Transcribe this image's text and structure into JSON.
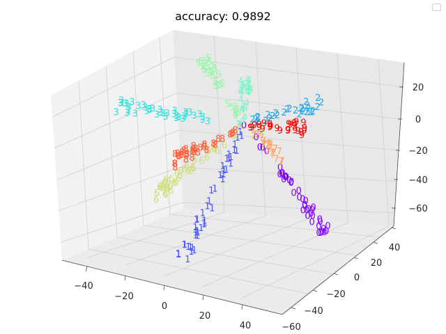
{
  "chart_data": {
    "type": "scatter",
    "projection": "3d",
    "title": "accuracy: 0.9892",
    "x_axis": {
      "ticks": [
        "−40",
        "−20",
        "0",
        "20",
        "40"
      ]
    },
    "y_axis": {
      "ticks": [
        "−60",
        "−40",
        "−20",
        "0",
        "20",
        "40"
      ]
    },
    "z_axis": {
      "ticks": [
        "20",
        "0",
        "−20",
        "−40",
        "−60"
      ]
    },
    "grid": true,
    "legend": {
      "placement": "upper-right",
      "entries": []
    },
    "series": [
      {
        "name": "0",
        "label": "0",
        "color": "#8000ff",
        "start": [
          0,
          -2
        ],
        "end": [
          120,
          160
        ],
        "count": 42
      },
      {
        "name": "1",
        "label": "1",
        "color": "#4a56ff",
        "start": [
          -4,
          8
        ],
        "end": [
          -88,
          190
        ],
        "count": 46
      },
      {
        "name": "2",
        "label": "2",
        "color": "#1ea6ee",
        "start": [
          2,
          -4
        ],
        "end": [
          110,
          -32
        ],
        "count": 30
      },
      {
        "name": "3",
        "label": "3",
        "color": "#2fe0de",
        "start": [
          -6,
          -4
        ],
        "end": [
          -185,
          -28
        ],
        "count": 40
      },
      {
        "name": "4",
        "label": "4",
        "color": "#7ef4c6",
        "start": [
          -2,
          -6
        ],
        "end": [
          2,
          -68
        ],
        "count": 22
      },
      {
        "name": "5",
        "label": "5",
        "color": "#94f7a4",
        "start": [
          -4,
          -6
        ],
        "end": [
          -62,
          -98
        ],
        "count": 30
      },
      {
        "name": "6",
        "label": "6",
        "color": "#cfdc7c",
        "start": [
          -6,
          4
        ],
        "end": [
          -132,
          102
        ],
        "count": 40
      },
      {
        "name": "7",
        "label": "7",
        "color": "#ffa35a",
        "start": [
          4,
          4
        ],
        "end": [
          58,
          54
        ],
        "count": 22
      },
      {
        "name": "8",
        "label": "8",
        "color": "#ff5a32",
        "start": [
          -4,
          2
        ],
        "end": [
          -105,
          52
        ],
        "count": 34
      },
      {
        "name": "9",
        "label": "9",
        "color": "#ff0000",
        "start": [
          4,
          0
        ],
        "end": [
          86,
          4
        ],
        "count": 26
      }
    ]
  }
}
